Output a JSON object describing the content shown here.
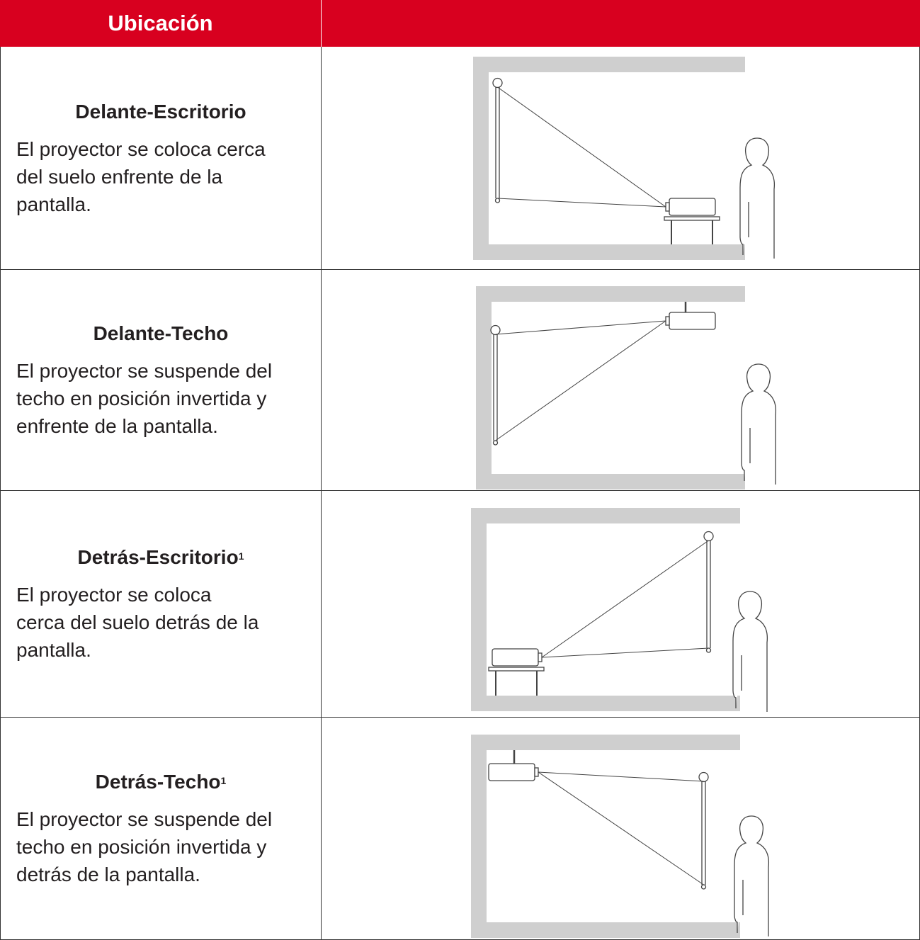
{
  "header": {
    "title": "Ubicación"
  },
  "table": {
    "rows": [
      {
        "title": "Delante-Escritorio",
        "description": [
          "El proyector se coloca cerca",
          "del suelo enfrente de la",
          "pantalla."
        ]
      },
      {
        "title": "Delante-Techo",
        "description": [
          "El proyector se suspende del",
          "techo en posición invertida y",
          "enfrente de la pantalla."
        ]
      },
      {
        "title": "Detrás-Escritorio",
        "note": "1",
        "description": [
          "El proyector se coloca",
          "cerca del suelo detrás de la",
          "pantalla."
        ]
      },
      {
        "title": "Detrás-Techo",
        "note": "1",
        "description": [
          "El proyector se suspende del",
          "techo en posición invertida y",
          "detrás de la pantalla."
        ]
      }
    ]
  }
}
